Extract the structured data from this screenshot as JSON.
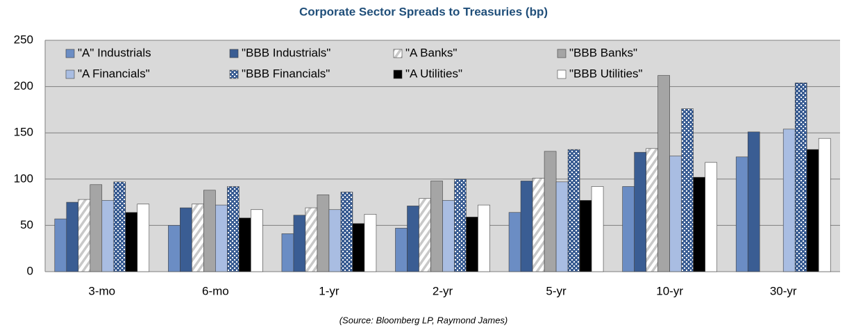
{
  "chart_data": {
    "type": "bar",
    "title": "Corporate Sector Spreads to Treasuries (bp)",
    "source": "(Source: Bloomberg LP, Raymond James)",
    "categories": [
      "3-mo",
      "6-mo",
      "1-yr",
      "2-yr",
      "5-yr",
      "10-yr",
      "30-yr"
    ],
    "series": [
      {
        "name": "\"A\" Industrials",
        "color": "#6b8dc4",
        "pattern": "solid",
        "values": [
          57,
          50,
          41,
          47,
          64,
          92,
          124
        ]
      },
      {
        "name": "\"BBB Industrials\"",
        "color": "#3a5d93",
        "pattern": "solid",
        "values": [
          75,
          69,
          61,
          71,
          98,
          129,
          151
        ]
      },
      {
        "name": "\"A Banks\"",
        "color": "#c8c8c8",
        "pattern": "diagonal",
        "values": [
          78,
          73,
          69,
          79,
          101,
          133,
          null
        ]
      },
      {
        "name": "\"BBB Banks\"",
        "color": "#a5a5a5",
        "pattern": "solid",
        "values": [
          94,
          88,
          83,
          98,
          130,
          212,
          null
        ]
      },
      {
        "name": "\"A Financials\"",
        "color": "#a9bde2",
        "pattern": "solid",
        "values": [
          77,
          72,
          67,
          77,
          97,
          125,
          154
        ]
      },
      {
        "name": "\"BBB Financials\"",
        "color": "#3a5d93",
        "pattern": "checker",
        "values": [
          97,
          92,
          86,
          100,
          132,
          176,
          204
        ]
      },
      {
        "name": "\"A Utilities\"",
        "color": "#000000",
        "pattern": "solid",
        "values": [
          64,
          58,
          52,
          59,
          77,
          102,
          132
        ]
      },
      {
        "name": "\"BBB Utilities\"",
        "color": "#ffffff",
        "pattern": "solid",
        "values": [
          73,
          67,
          62,
          72,
          92,
          118,
          144
        ]
      }
    ],
    "ylim": [
      0,
      250
    ],
    "yticks": [
      0,
      50,
      100,
      150,
      200,
      250
    ],
    "grid": true,
    "legend": "top"
  }
}
